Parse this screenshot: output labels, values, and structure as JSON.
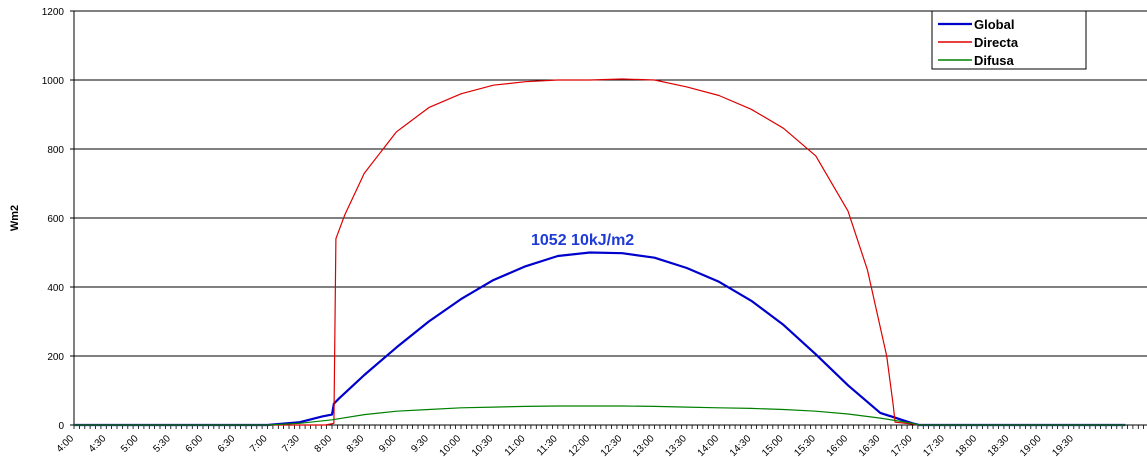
{
  "chart_data": {
    "type": "line",
    "ylabel": "Wm2",
    "xlabel": "",
    "ylim": [
      0,
      1200
    ],
    "yticks": [
      "0",
      "200",
      "400",
      "600",
      "800",
      "1000",
      "1200"
    ],
    "x_categories": [
      "4:00",
      "4:30",
      "5:00",
      "5:30",
      "6:00",
      "6:30",
      "7:00",
      "7:30",
      "8:00",
      "8:30",
      "9:00",
      "9:30",
      "10:00",
      "10:30",
      "11:00",
      "11:30",
      "12:00",
      "12:30",
      "13:00",
      "13:30",
      "14:00",
      "14:30",
      "15:00",
      "15:30",
      "16:00",
      "16:30",
      "17:00",
      "17:30",
      "18:00",
      "18:30",
      "19:00",
      "19:30"
    ],
    "grid": "horizontal",
    "legend_position": "top-right",
    "annotation": "1052  10kJ/m2",
    "series": [
      {
        "name": "Global",
        "color": "#0000cc",
        "points": [
          [
            4.0,
            0
          ],
          [
            7.0,
            0
          ],
          [
            7.5,
            8
          ],
          [
            7.85,
            25
          ],
          [
            8.0,
            30
          ],
          [
            8.03,
            62
          ],
          [
            8.1,
            75
          ],
          [
            8.5,
            145
          ],
          [
            9.0,
            225
          ],
          [
            9.5,
            300
          ],
          [
            10.0,
            365
          ],
          [
            10.5,
            420
          ],
          [
            11.0,
            460
          ],
          [
            11.5,
            490
          ],
          [
            12.0,
            500
          ],
          [
            12.5,
            498
          ],
          [
            13.0,
            485
          ],
          [
            13.5,
            455
          ],
          [
            14.0,
            415
          ],
          [
            14.5,
            360
          ],
          [
            15.0,
            290
          ],
          [
            15.5,
            205
          ],
          [
            16.0,
            115
          ],
          [
            16.5,
            35
          ],
          [
            17.0,
            5
          ],
          [
            17.1,
            0
          ],
          [
            20.3,
            0
          ]
        ]
      },
      {
        "name": "Directa",
        "color": "#dd0000",
        "points": [
          [
            4.0,
            0
          ],
          [
            7.9,
            0
          ],
          [
            8.03,
            5
          ],
          [
            8.06,
            540
          ],
          [
            8.2,
            610
          ],
          [
            8.5,
            730
          ],
          [
            9.0,
            850
          ],
          [
            9.5,
            920
          ],
          [
            10.0,
            960
          ],
          [
            10.5,
            985
          ],
          [
            11.0,
            995
          ],
          [
            11.5,
            1000
          ],
          [
            12.0,
            1000
          ],
          [
            12.5,
            1003
          ],
          [
            13.0,
            1000
          ],
          [
            13.5,
            980
          ],
          [
            14.0,
            955
          ],
          [
            14.5,
            915
          ],
          [
            15.0,
            860
          ],
          [
            15.5,
            780
          ],
          [
            16.0,
            620
          ],
          [
            16.3,
            450
          ],
          [
            16.6,
            200
          ],
          [
            16.7,
            60
          ],
          [
            16.73,
            8
          ],
          [
            17.0,
            3
          ],
          [
            17.1,
            0
          ],
          [
            20.3,
            0
          ]
        ]
      },
      {
        "name": "Difusa",
        "color": "#008000",
        "points": [
          [
            4.0,
            0
          ],
          [
            7.0,
            0
          ],
          [
            7.5,
            5
          ],
          [
            8.0,
            15
          ],
          [
            8.5,
            30
          ],
          [
            9.0,
            40
          ],
          [
            9.5,
            45
          ],
          [
            10.0,
            50
          ],
          [
            10.5,
            52
          ],
          [
            11.0,
            54
          ],
          [
            11.5,
            55
          ],
          [
            12.0,
            55
          ],
          [
            12.5,
            55
          ],
          [
            13.0,
            54
          ],
          [
            13.5,
            52
          ],
          [
            14.0,
            50
          ],
          [
            14.5,
            48
          ],
          [
            15.0,
            45
          ],
          [
            15.5,
            40
          ],
          [
            16.0,
            32
          ],
          [
            16.5,
            20
          ],
          [
            17.0,
            5
          ],
          [
            17.1,
            0
          ],
          [
            20.3,
            0
          ]
        ]
      }
    ]
  }
}
